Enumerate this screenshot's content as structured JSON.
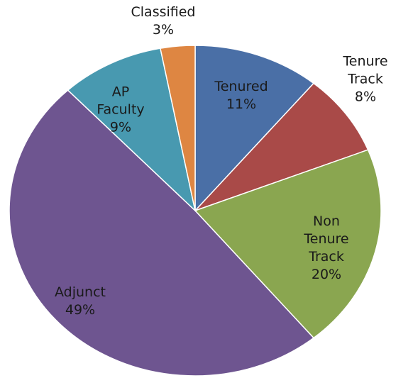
{
  "chart_data": {
    "type": "pie",
    "categories": [
      "Tenured",
      "Tenure Track",
      "Non Tenure Track",
      "Adjunct",
      "AP Faculty",
      "Classified"
    ],
    "values": [
      11,
      8,
      20,
      49,
      9,
      3
    ],
    "value_labels": [
      "11%",
      "8%",
      "20%",
      "49%",
      "9%",
      "3%"
    ],
    "colors": [
      "#4a6fa6",
      "#a94a48",
      "#8aa650",
      "#6e5590",
      "#4899b0",
      "#de8642"
    ]
  }
}
